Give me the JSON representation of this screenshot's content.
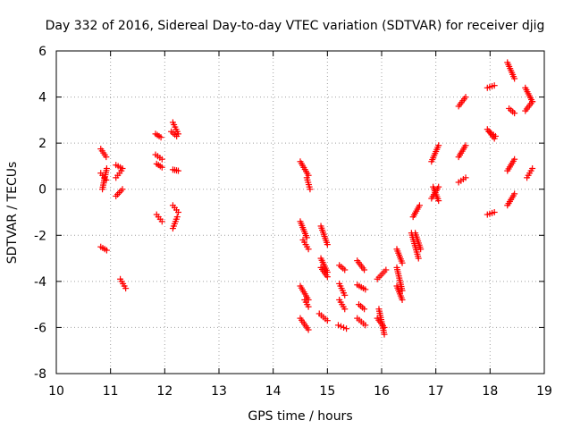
{
  "chart_data": {
    "type": "scatter",
    "title": "Day 332 of 2016, Sidereal Day-to-day VTEC variation (SDTVAR) for receiver djig",
    "xlabel": "GPS time / hours",
    "ylabel": "SDTVAR / TECUs",
    "xlim": [
      10,
      19
    ],
    "ylim": [
      -8,
      6
    ],
    "xticks": [
      "10",
      "11",
      "12",
      "13",
      "14",
      "15",
      "16",
      "17",
      "18",
      "19"
    ],
    "yticks": [
      "-8",
      "-6",
      "-4",
      "-2",
      "0",
      "2",
      "4",
      "6"
    ],
    "grid": true,
    "marker": "plus",
    "color": "#ff0000",
    "series": [
      {
        "name": "SDTVAR",
        "segments": [
          {
            "x0": 10.82,
            "x1": 10.92,
            "y0": 1.75,
            "y1": 1.4
          },
          {
            "x0": 10.82,
            "x1": 10.92,
            "y0": 0.7,
            "y1": 0.4
          },
          {
            "x0": 10.85,
            "x1": 10.93,
            "y0": 0.0,
            "y1": 0.9
          },
          {
            "x0": 10.82,
            "x1": 10.93,
            "y0": -2.5,
            "y1": -2.65
          },
          {
            "x0": 11.1,
            "x1": 11.22,
            "y0": 1.05,
            "y1": 0.9
          },
          {
            "x0": 11.1,
            "x1": 11.2,
            "y0": 0.5,
            "y1": 0.8
          },
          {
            "x0": 11.1,
            "x1": 11.22,
            "y0": -0.3,
            "y1": 0.0
          },
          {
            "x0": 11.18,
            "x1": 11.28,
            "y0": -3.9,
            "y1": -4.3
          },
          {
            "x0": 11.83,
            "x1": 11.93,
            "y0": 2.4,
            "y1": 2.25
          },
          {
            "x0": 11.83,
            "x1": 11.95,
            "y0": 1.5,
            "y1": 1.3
          },
          {
            "x0": 11.85,
            "x1": 11.95,
            "y0": 1.1,
            "y1": 0.95
          },
          {
            "x0": 11.85,
            "x1": 11.95,
            "y0": -1.1,
            "y1": -1.4
          },
          {
            "x0": 12.15,
            "x1": 12.25,
            "y0": 2.9,
            "y1": 2.4
          },
          {
            "x0": 12.12,
            "x1": 12.22,
            "y0": 2.5,
            "y1": 2.3
          },
          {
            "x0": 12.15,
            "x1": 12.25,
            "y0": 0.85,
            "y1": 0.8
          },
          {
            "x0": 12.15,
            "x1": 12.25,
            "y0": -0.7,
            "y1": -1.0
          },
          {
            "x0": 12.15,
            "x1": 12.23,
            "y0": -1.7,
            "y1": -1.2
          },
          {
            "x0": 14.5,
            "x1": 14.65,
            "y0": 1.2,
            "y1": 0.6
          },
          {
            "x0": 14.62,
            "x1": 14.68,
            "y0": 0.5,
            "y1": 0.0
          },
          {
            "x0": 14.5,
            "x1": 14.62,
            "y0": -1.4,
            "y1": -2.1
          },
          {
            "x0": 14.55,
            "x1": 14.65,
            "y0": -2.2,
            "y1": -2.6
          },
          {
            "x0": 14.5,
            "x1": 14.65,
            "y0": -4.2,
            "y1": -4.8
          },
          {
            "x0": 14.58,
            "x1": 14.65,
            "y0": -4.8,
            "y1": -5.1
          },
          {
            "x0": 14.5,
            "x1": 14.65,
            "y0": -5.6,
            "y1": -6.1
          },
          {
            "x0": 14.88,
            "x1": 15.0,
            "y0": -1.6,
            "y1": -2.4
          },
          {
            "x0": 14.88,
            "x1": 15.0,
            "y0": -3.0,
            "y1": -3.6
          },
          {
            "x0": 14.88,
            "x1": 15.0,
            "y0": -3.4,
            "y1": -3.8
          },
          {
            "x0": 14.85,
            "x1": 15.0,
            "y0": -5.4,
            "y1": -5.7
          },
          {
            "x0": 15.22,
            "x1": 15.32,
            "y0": -3.3,
            "y1": -3.5
          },
          {
            "x0": 15.22,
            "x1": 15.32,
            "y0": -4.1,
            "y1": -4.6
          },
          {
            "x0": 15.22,
            "x1": 15.32,
            "y0": -4.8,
            "y1": -5.2
          },
          {
            "x0": 15.2,
            "x1": 15.35,
            "y0": -5.9,
            "y1": -6.05
          },
          {
            "x0": 15.55,
            "x1": 15.68,
            "y0": -3.1,
            "y1": -3.5
          },
          {
            "x0": 15.55,
            "x1": 15.7,
            "y0": -4.15,
            "y1": -4.35
          },
          {
            "x0": 15.58,
            "x1": 15.68,
            "y0": -5.0,
            "y1": -5.2
          },
          {
            "x0": 15.55,
            "x1": 15.7,
            "y0": -5.6,
            "y1": -5.9
          },
          {
            "x0": 15.92,
            "x1": 16.08,
            "y0": -3.9,
            "y1": -3.5
          },
          {
            "x0": 15.95,
            "x1": 16.05,
            "y0": -5.2,
            "y1": -6.3
          },
          {
            "x0": 15.92,
            "x1": 16.05,
            "y0": -5.6,
            "y1": -6.0
          },
          {
            "x0": 16.28,
            "x1": 16.38,
            "y0": -2.6,
            "y1": -3.2
          },
          {
            "x0": 16.28,
            "x1": 16.38,
            "y0": -3.4,
            "y1": -4.4
          },
          {
            "x0": 16.28,
            "x1": 16.38,
            "y0": -4.2,
            "y1": -4.8
          },
          {
            "x0": 16.55,
            "x1": 16.68,
            "y0": -1.9,
            "y1": -3.0
          },
          {
            "x0": 16.62,
            "x1": 16.72,
            "y0": -1.9,
            "y1": -2.6
          },
          {
            "x0": 16.58,
            "x1": 16.7,
            "y0": -1.2,
            "y1": -0.7
          },
          {
            "x0": 16.92,
            "x1": 17.05,
            "y0": 1.2,
            "y1": 1.9
          },
          {
            "x0": 16.95,
            "x1": 17.05,
            "y0": 0.1,
            "y1": -0.5
          },
          {
            "x0": 16.92,
            "x1": 17.05,
            "y0": -0.4,
            "y1": 0.1
          },
          {
            "x0": 17.42,
            "x1": 17.55,
            "y0": 3.6,
            "y1": 4.0
          },
          {
            "x0": 17.42,
            "x1": 17.55,
            "y0": 1.4,
            "y1": 1.9
          },
          {
            "x0": 17.42,
            "x1": 17.55,
            "y0": 0.3,
            "y1": 0.5
          },
          {
            "x0": 17.95,
            "x1": 18.08,
            "y0": 4.4,
            "y1": 4.5
          },
          {
            "x0": 17.95,
            "x1": 18.08,
            "y0": 2.6,
            "y1": 2.2
          },
          {
            "x0": 17.98,
            "x1": 18.1,
            "y0": 2.5,
            "y1": 2.3
          },
          {
            "x0": 17.95,
            "x1": 18.08,
            "y0": -1.1,
            "y1": -1.0
          },
          {
            "x0": 18.32,
            "x1": 18.45,
            "y0": 5.5,
            "y1": 4.8
          },
          {
            "x0": 18.35,
            "x1": 18.45,
            "y0": 3.5,
            "y1": 3.3
          },
          {
            "x0": 18.32,
            "x1": 18.45,
            "y0": 0.8,
            "y1": 1.3
          },
          {
            "x0": 18.32,
            "x1": 18.45,
            "y0": -0.7,
            "y1": -0.2
          },
          {
            "x0": 18.65,
            "x1": 18.78,
            "y0": 4.4,
            "y1": 3.8
          },
          {
            "x0": 18.65,
            "x1": 18.78,
            "y0": 3.4,
            "y1": 3.8
          },
          {
            "x0": 18.68,
            "x1": 18.78,
            "y0": 0.5,
            "y1": 0.9
          }
        ]
      }
    ]
  }
}
